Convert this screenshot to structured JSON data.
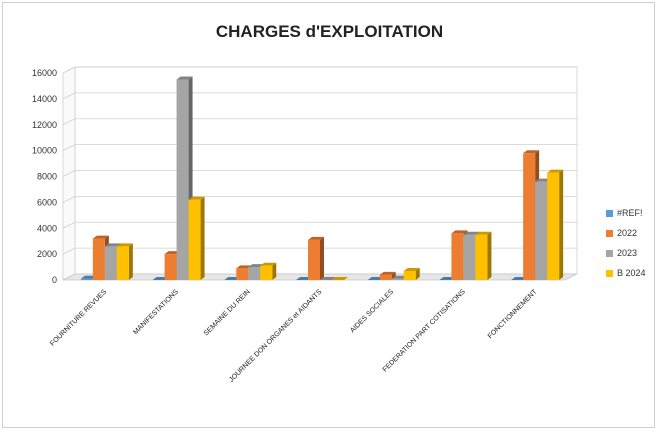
{
  "chart_data": {
    "type": "bar",
    "title": "CHARGES d'EXPLOITATION",
    "xlabel": "",
    "ylabel": "",
    "ylim": [
      0,
      16000
    ],
    "yticks": [
      0,
      2000,
      4000,
      6000,
      8000,
      10000,
      12000,
      14000,
      16000
    ],
    "grid": true,
    "legend_position": "right",
    "categories": [
      "FOURNITURE  REVUES",
      "MANIFESTATIONS",
      "SEMAINE DU REIN",
      "JOURNEE DON ORGANES et AIDANTS",
      "AIDES SOCIALES",
      "FEDERATION PART COTISATIONS",
      "FONCTIONNEMENT"
    ],
    "series": [
      {
        "name": "#REF!",
        "color": "#5b9bd5",
        "values": [
          100,
          0,
          0,
          0,
          0,
          0,
          0
        ]
      },
      {
        "name": "2022",
        "color": "#ed7d31",
        "values": [
          3200,
          2000,
          900,
          3100,
          400,
          3600,
          9800
        ]
      },
      {
        "name": "2023",
        "color": "#a5a5a5",
        "values": [
          2600,
          15500,
          1000,
          0,
          100,
          3500,
          7600
        ]
      },
      {
        "name": "B 2024",
        "color": "#ffc000",
        "values": [
          2600,
          6200,
          1100,
          0,
          700,
          3500,
          8300
        ]
      }
    ]
  }
}
